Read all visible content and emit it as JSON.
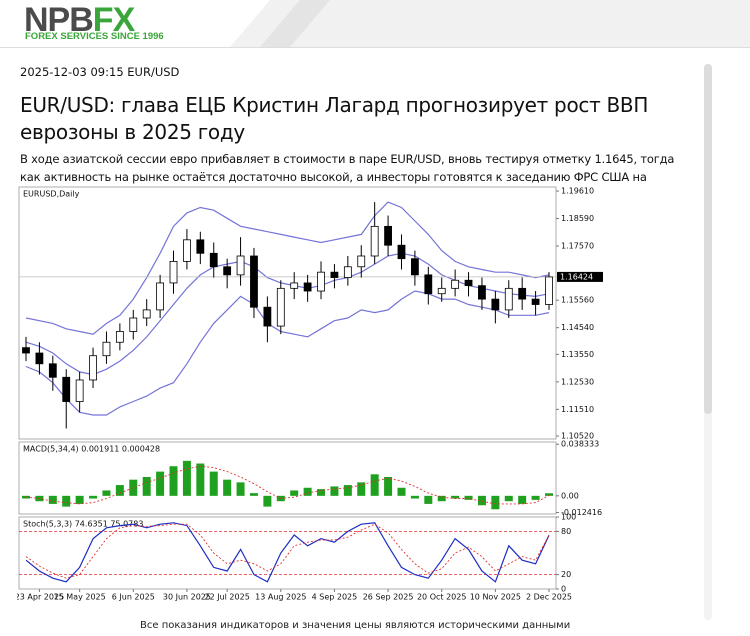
{
  "header": {
    "logo_left": "NPB",
    "logo_right": "FX",
    "tagline": "FOREX SERVICES SINCE 1996"
  },
  "article": {
    "meta": "2025-12-03 09:15 EUR/USD",
    "title": "EUR/USD: глава ЕЦБ Кристин Лагард прогнозирует рост ВВП еврозоны в 2025 году",
    "lead": "В ходе азиатской сессии евро прибавляет в стоимости в паре EUR/USD, вновь тестируя отметку 1.1645, тогда как активность на рынке остаётся достаточно высокой, а инвесторы готовятся к заседанию ФРС США на следующей неделе.",
    "caption": "Все показания индикаторов и значения цены являются историческими данными"
  },
  "chart_data": [
    {
      "type": "candlestick",
      "label": "EURUSD,Daily",
      "categories": [
        null,
        "23 Apr 2025",
        null,
        null,
        "15 May 2025",
        null,
        null,
        null,
        "6 Jun 2025",
        null,
        null,
        null,
        "30 Jun 2025",
        null,
        null,
        "22 Jul 2025",
        null,
        null,
        null,
        "13 Aug 2025",
        null,
        null,
        null,
        "4 Sep 2025",
        null,
        null,
        null,
        "26 Sep 2025",
        null,
        null,
        null,
        "20 Oct 2025",
        null,
        null,
        null,
        "10 Nov 2025",
        null,
        null,
        null,
        "2 Dec 2025"
      ],
      "open": [
        1.138,
        1.136,
        1.132,
        1.127,
        1.118,
        1.126,
        1.135,
        1.14,
        1.144,
        1.149,
        1.152,
        1.162,
        1.17,
        1.178,
        1.173,
        1.168,
        1.165,
        1.172,
        1.153,
        1.146,
        1.16,
        1.162,
        1.159,
        1.166,
        1.164,
        1.168,
        1.172,
        1.183,
        1.176,
        1.171,
        1.165,
        1.158,
        1.16,
        1.163,
        1.161,
        1.156,
        1.152,
        1.16,
        1.156,
        1.154
      ],
      "high": [
        1.142,
        1.14,
        1.135,
        1.13,
        1.129,
        1.138,
        1.144,
        1.147,
        1.152,
        1.156,
        1.165,
        1.174,
        1.182,
        1.181,
        1.177,
        1.171,
        1.179,
        1.175,
        1.157,
        1.163,
        1.166,
        1.165,
        1.17,
        1.169,
        1.172,
        1.176,
        1.192,
        1.187,
        1.18,
        1.174,
        1.168,
        1.164,
        1.167,
        1.166,
        1.164,
        1.159,
        1.163,
        1.164,
        1.159,
        1.166
      ],
      "low": [
        1.133,
        1.128,
        1.122,
        1.108,
        1.114,
        1.123,
        1.132,
        1.137,
        1.141,
        1.146,
        1.149,
        1.158,
        1.167,
        1.169,
        1.164,
        1.16,
        1.161,
        1.149,
        1.14,
        1.143,
        1.156,
        1.155,
        1.156,
        1.16,
        1.161,
        1.164,
        1.169,
        1.172,
        1.167,
        1.161,
        1.154,
        1.155,
        1.157,
        1.157,
        1.152,
        1.147,
        1.149,
        1.152,
        1.15,
        1.152
      ],
      "close": [
        1.136,
        1.132,
        1.127,
        1.118,
        1.126,
        1.135,
        1.14,
        1.144,
        1.149,
        1.152,
        1.162,
        1.17,
        1.178,
        1.173,
        1.168,
        1.165,
        1.172,
        1.153,
        1.146,
        1.16,
        1.162,
        1.159,
        1.166,
        1.164,
        1.168,
        1.172,
        1.183,
        1.176,
        1.171,
        1.165,
        1.158,
        1.16,
        1.163,
        1.161,
        1.156,
        1.152,
        1.16,
        1.156,
        1.154,
        1.16424
      ],
      "series": [
        {
          "color": "#7474d8",
          "values": [
            1.149,
            1.148,
            1.147,
            1.145,
            1.144,
            1.143,
            1.147,
            1.15,
            1.156,
            1.164,
            1.173,
            1.183,
            1.188,
            1.19,
            1.189,
            1.186,
            1.183,
            1.182,
            1.181,
            1.18,
            1.179,
            1.178,
            1.177,
            1.178,
            1.179,
            1.18,
            1.187,
            1.192,
            1.19,
            1.185,
            1.18,
            1.174,
            1.17,
            1.168,
            1.167,
            1.166,
            1.166,
            1.165,
            1.164,
            1.165
          ]
        },
        {
          "color": "#7474d8",
          "values": [
            1.14,
            1.1385,
            1.136,
            1.132,
            1.129,
            1.128,
            1.13,
            1.133,
            1.137,
            1.142,
            1.148,
            1.154,
            1.16,
            1.165,
            1.168,
            1.169,
            1.17,
            1.168,
            1.164,
            1.162,
            1.161,
            1.16,
            1.161,
            1.163,
            1.164,
            1.166,
            1.169,
            1.172,
            1.173,
            1.172,
            1.169,
            1.165,
            1.163,
            1.161,
            1.16,
            1.159,
            1.158,
            1.1575,
            1.157,
            1.158
          ]
        },
        {
          "color": "#7474d8",
          "values": [
            1.131,
            1.129,
            1.125,
            1.119,
            1.114,
            1.113,
            1.113,
            1.116,
            1.118,
            1.12,
            1.123,
            1.125,
            1.132,
            1.14,
            1.147,
            1.152,
            1.157,
            1.154,
            1.147,
            1.144,
            1.143,
            1.142,
            1.145,
            1.148,
            1.149,
            1.152,
            1.151,
            1.152,
            1.156,
            1.159,
            1.158,
            1.156,
            1.156,
            1.154,
            1.153,
            1.152,
            1.15,
            1.15,
            1.15,
            1.151
          ]
        }
      ],
      "ylim": [
        1.1041,
        1.1976
      ],
      "yticks": [
        {
          "value": 1.1961,
          "label": "1.19610"
        },
        {
          "value": 1.1859,
          "label": "1.18590"
        },
        {
          "value": 1.1757,
          "label": "1.17570"
        },
        {
          "value": 1.1556,
          "label": "1.15560"
        },
        {
          "value": 1.1454,
          "label": "1.14540"
        },
        {
          "value": 1.1355,
          "label": "1.13550"
        },
        {
          "value": 1.1253,
          "label": "1.12530"
        },
        {
          "value": 1.1151,
          "label": "1.11510"
        },
        {
          "value": 1.1052,
          "label": "1.10520"
        }
      ],
      "current_price": 1.16424
    },
    {
      "type": "bar",
      "label": "MACD(5,34,4) 0.001911 0.000428",
      "color": "#1fa01f",
      "values": [
        -0.002,
        -0.004,
        -0.006,
        -0.008,
        -0.006,
        -0.002,
        0.004,
        0.008,
        0.012,
        0.014,
        0.018,
        0.022,
        0.026,
        0.024,
        0.018,
        0.012,
        0.01,
        0.002,
        -0.008,
        -0.004,
        0.004,
        0.006,
        0.005,
        0.007,
        0.008,
        0.01,
        0.016,
        0.014,
        0.006,
        -0.002,
        -0.006,
        -0.004,
        -0.002,
        -0.003,
        -0.007,
        -0.01,
        -0.004,
        -0.006,
        -0.003,
        0.001911
      ],
      "series": [
        {
          "color": "#e03030",
          "dashed": true,
          "values": [
            -0.001,
            -0.002,
            -0.004,
            -0.005,
            -0.006,
            -0.005,
            -0.002,
            0.002,
            0.006,
            0.01,
            0.013,
            0.017,
            0.02,
            0.022,
            0.021,
            0.018,
            0.014,
            0.009,
            0.003,
            -0.002,
            -0.001,
            0.002,
            0.004,
            0.005,
            0.006,
            0.008,
            0.011,
            0.013,
            0.011,
            0.007,
            0.002,
            -0.001,
            -0.002,
            -0.002,
            -0.004,
            -0.006,
            -0.006,
            -0.006,
            -0.005,
            0.000428
          ]
        }
      ],
      "ylim": [
        -0.0135,
        0.04
      ],
      "yticks": [
        0.038333,
        {
          "value": 0,
          "label": "0.00"
        },
        -0.012416
      ]
    },
    {
      "type": "line",
      "label": "Stoch(5,3,3) 74.6351 75.0783",
      "series": [
        {
          "color": "#1c2cc4",
          "values": [
            40,
            25,
            15,
            10,
            30,
            70,
            85,
            88,
            90,
            85,
            90,
            92,
            88,
            60,
            30,
            25,
            55,
            20,
            10,
            50,
            75,
            60,
            70,
            65,
            80,
            90,
            92,
            60,
            30,
            20,
            15,
            40,
            70,
            55,
            25,
            10,
            60,
            40,
            35,
            74.6351
          ]
        },
        {
          "color": "#e03030",
          "dashed": true,
          "values": [
            45,
            32,
            22,
            15,
            20,
            45,
            70,
            85,
            88,
            87,
            88,
            90,
            90,
            75,
            50,
            35,
            40,
            35,
            25,
            35,
            60,
            65,
            68,
            68,
            72,
            82,
            90,
            78,
            55,
            35,
            22,
            28,
            50,
            58,
            45,
            25,
            35,
            45,
            40,
            75.0783
          ]
        }
      ],
      "ylim": [
        0,
        100
      ],
      "yticks": [
        100,
        80,
        20,
        0
      ],
      "levels": [
        80,
        20
      ]
    }
  ]
}
